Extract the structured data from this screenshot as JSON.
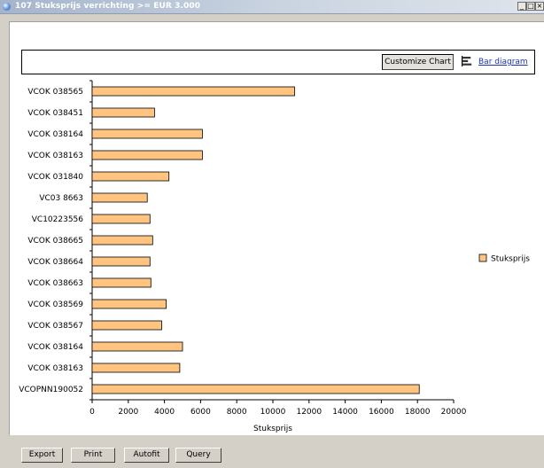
{
  "window": {
    "title": "107 Stuksprijs verrichting >= EUR 3.000",
    "minimize_glyph": "_",
    "maximize_glyph": "□",
    "close_glyph": "×"
  },
  "toolbar": {
    "customize_label": "Customize Chart",
    "bar_diagram_label": "Bar diagram",
    "bar_diagram_icon": "bar-chart-icon"
  },
  "chart_data": {
    "type": "bar",
    "orientation": "horizontal",
    "categories": [
      "VCOK 038565",
      "VCOK 038451",
      "VCOK 038164",
      "VCOK 038163",
      "VCOK 031840",
      "VC03 8663",
      "VC10223556",
      "VCOK 038665",
      "VCOK 038664",
      "VCOK 038663",
      "VCOK 038569",
      "VCOK 038567",
      "VCOK 038164",
      "VCOK 038163",
      "VCOPNN190052"
    ],
    "series": [
      {
        "name": "Stuksprijs",
        "values": [
          11200,
          3450,
          6100,
          6100,
          4250,
          3050,
          3200,
          3350,
          3200,
          3250,
          4100,
          3850,
          5000,
          4850,
          18100
        ],
        "color": "#ffc480"
      }
    ],
    "xlabel": "Stuksprijs",
    "ylabel": "",
    "xlim": [
      0,
      20000
    ],
    "xticks": [
      0,
      2000,
      4000,
      6000,
      8000,
      10000,
      12000,
      14000,
      16000,
      18000,
      20000
    ],
    "grid": false,
    "legend": "right"
  },
  "footer": {
    "export_label": "Export",
    "print_label": "Print",
    "autofit_label": "Autofit",
    "query_label": "Query"
  }
}
